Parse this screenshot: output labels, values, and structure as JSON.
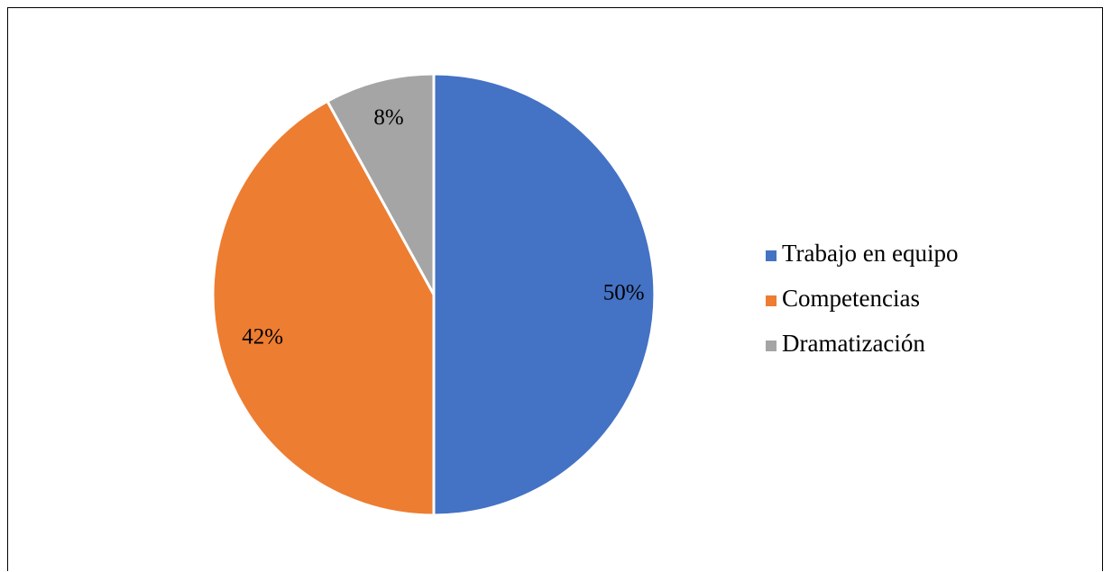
{
  "chart_data": {
    "type": "pie",
    "title": "",
    "legend_position": "right",
    "start_angle_deg": 0,
    "direction": "clockwise",
    "slices": [
      {
        "label": "Trabajo en equipo",
        "value": 50,
        "display": "50%",
        "color": "#4472C4"
      },
      {
        "label": "Competencias",
        "value": 42,
        "display": "42%",
        "color": "#ED7D31"
      },
      {
        "label": "Dramatización",
        "value": 8,
        "display": "8%",
        "color": "#A5A5A5"
      }
    ]
  }
}
